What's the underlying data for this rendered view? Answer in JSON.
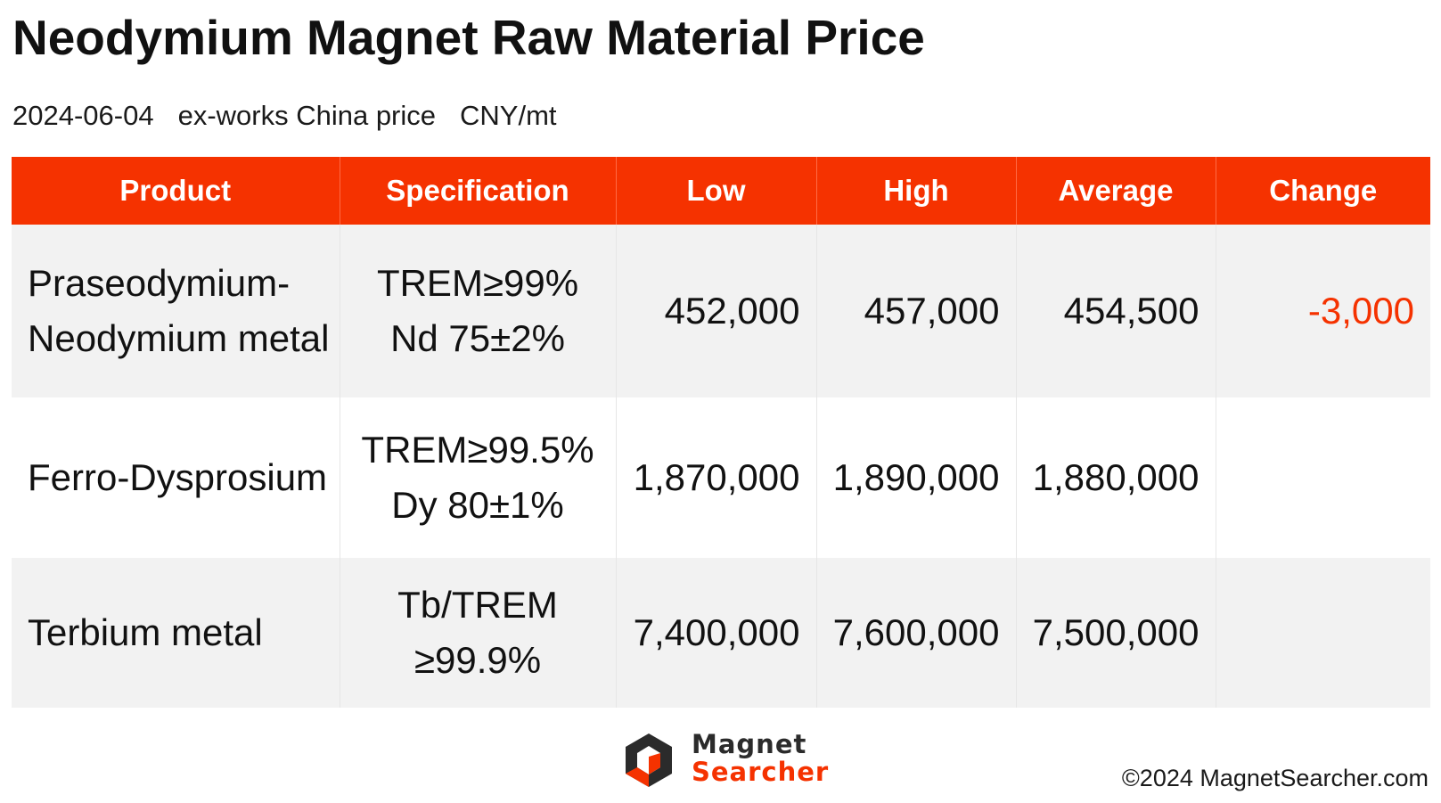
{
  "title": "Neodymium Magnet Raw Material Price",
  "subtitle": {
    "date": "2024-06-04",
    "basis": "ex-works China price",
    "unit": "CNY/mt"
  },
  "table": {
    "headers": [
      "Product",
      "Specification",
      "Low",
      "High",
      "Average",
      "Change"
    ],
    "rows": [
      {
        "product": [
          "Praseodymium-",
          "Neodymium metal"
        ],
        "spec": [
          "TREM≥99%",
          "Nd 75±2%"
        ],
        "low": "452,000",
        "high": "457,000",
        "average": "454,500",
        "change": "-3,000"
      },
      {
        "product": [
          "Ferro-Dysprosium"
        ],
        "spec": [
          "TREM≥99.5%",
          "Dy 80±1%"
        ],
        "low": "1,870,000",
        "high": "1,890,000",
        "average": "1,880,000",
        "change": ""
      },
      {
        "product": [
          "Terbium metal"
        ],
        "spec": [
          "Tb/TREM",
          "≥99.9%"
        ],
        "low": "7,400,000",
        "high": "7,600,000",
        "average": "7,500,000",
        "change": ""
      }
    ]
  },
  "logo": {
    "line1": "Magnet",
    "line2": "Searcher"
  },
  "copyright": "©2024 MagnetSearcher.com",
  "colors": {
    "accent": "#f53200",
    "row_shade": "#f2f2f2"
  },
  "icons": {
    "logo_mark": "magnet-searcher-logo-icon"
  }
}
